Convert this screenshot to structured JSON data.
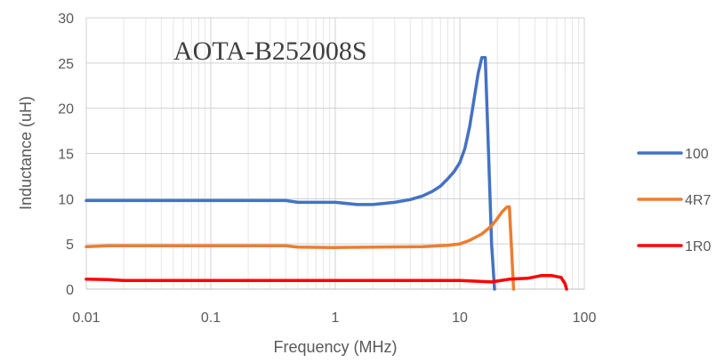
{
  "chart_data": {
    "type": "line",
    "title": "AOTA-B252008S",
    "xlabel": "Frequency (MHz)",
    "ylabel": "Inductance (uH)",
    "x_scale": "log",
    "xlim": [
      0.01,
      100
    ],
    "ylim": [
      0,
      30
    ],
    "x_ticks": [
      "0.01",
      "0.1",
      "1",
      "10",
      "100"
    ],
    "y_ticks": [
      "0",
      "5",
      "10",
      "15",
      "20",
      "25",
      "30"
    ],
    "grid": true,
    "legend_position": "right",
    "series": [
      {
        "name": "100",
        "color": "#4472C4",
        "x": [
          0.01,
          0.1,
          0.4,
          0.5,
          1,
          1.5,
          2,
          3,
          4,
          5,
          6,
          7,
          8,
          9,
          10,
          11,
          12,
          13,
          14,
          15,
          16,
          17,
          18,
          19
        ],
        "y": [
          9.8,
          9.8,
          9.8,
          9.6,
          9.6,
          9.35,
          9.35,
          9.6,
          9.9,
          10.3,
          10.8,
          11.4,
          12.2,
          13.0,
          14.0,
          15.6,
          18.0,
          21.0,
          23.8,
          25.6,
          25.6,
          15.0,
          5.0,
          0.0
        ]
      },
      {
        "name": "4R7",
        "color": "#ED7D31",
        "x": [
          0.01,
          0.015,
          0.1,
          0.4,
          0.5,
          1,
          5,
          8,
          10,
          12,
          15,
          18,
          20,
          22,
          24,
          25,
          26,
          27
        ],
        "y": [
          4.7,
          4.8,
          4.8,
          4.8,
          4.65,
          4.6,
          4.7,
          4.85,
          5.0,
          5.4,
          6.1,
          7.0,
          7.8,
          8.6,
          9.1,
          9.1,
          4.5,
          0.0
        ]
      },
      {
        "name": "1R0",
        "color": "#FF0000",
        "x": [
          0.01,
          0.015,
          0.02,
          1,
          10,
          18,
          20,
          25,
          35,
          45,
          55,
          65,
          70,
          72
        ],
        "y": [
          1.1,
          1.05,
          0.95,
          0.95,
          0.95,
          0.8,
          0.9,
          1.1,
          1.2,
          1.5,
          1.5,
          1.3,
          0.6,
          0.0
        ]
      }
    ]
  }
}
